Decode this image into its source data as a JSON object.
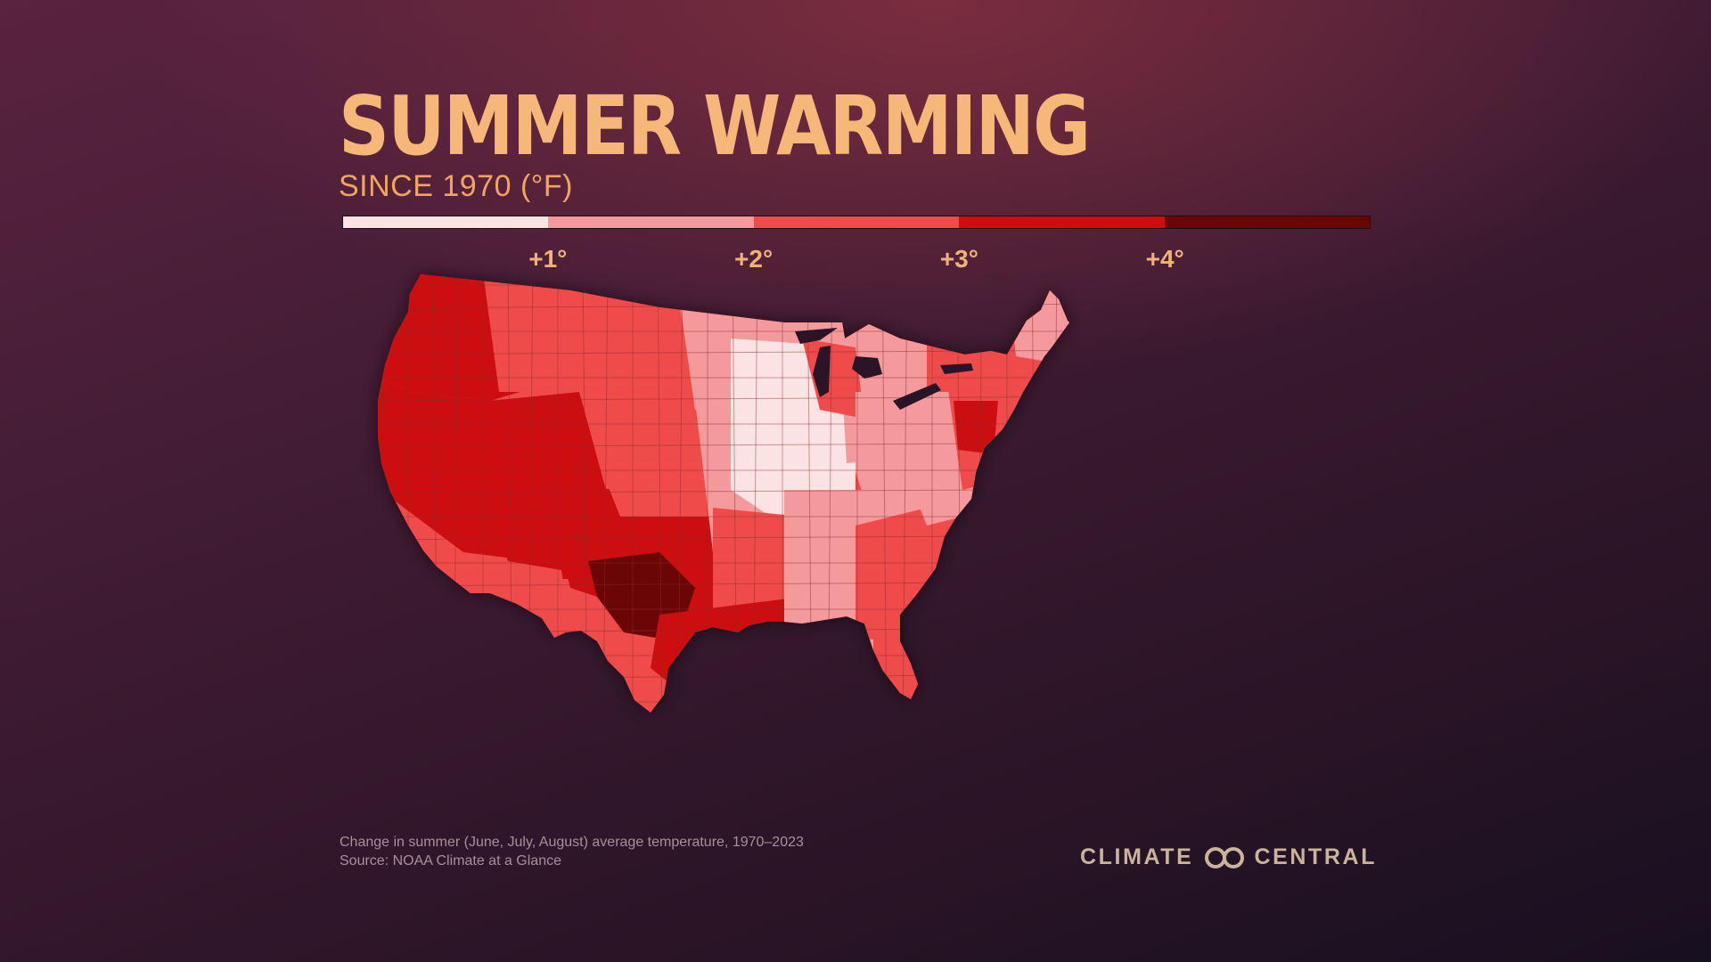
{
  "title": "SUMMER WARMING",
  "subtitle": "SINCE 1970 (°F)",
  "legend": {
    "colors": [
      "#fbe3e3",
      "#f59a9c",
      "#f04b4b",
      "#cc0e10",
      "#6b0606"
    ],
    "ticks": [
      {
        "label": "+1°",
        "value": 1
      },
      {
        "label": "+2°",
        "value": 2
      },
      {
        "label": "+3°",
        "value": 3
      },
      {
        "label": "+4°",
        "value": 4
      }
    ]
  },
  "map": {
    "regions": [
      {
        "name": "pacific-northwest",
        "color": "#cc0e10"
      },
      {
        "name": "california-great-basin",
        "color": "#cc0e10"
      },
      {
        "name": "southern-california",
        "color": "#f04b4b"
      },
      {
        "name": "desert-southwest",
        "color": "#cc0e10"
      },
      {
        "name": "arizona-south",
        "color": "#f04b4b"
      },
      {
        "name": "northern-rockies",
        "color": "#f04b4b"
      },
      {
        "name": "wyoming-colorado",
        "color": "#f04b4b"
      },
      {
        "name": "southern-rockies",
        "color": "#cc0e10"
      },
      {
        "name": "northern-plains",
        "color": "#f59a9c"
      },
      {
        "name": "high-plains",
        "color": "#f59a9c"
      },
      {
        "name": "corn-belt",
        "color": "#fbe3e3"
      },
      {
        "name": "upper-midwest",
        "color": "#f59a9c"
      },
      {
        "name": "great-lakes",
        "color": "#f04b4b"
      },
      {
        "name": "ohio-valley",
        "color": "#f59a9c"
      },
      {
        "name": "southern-plains",
        "color": "#f04b4b"
      },
      {
        "name": "west-texas",
        "color": "#6b0606"
      },
      {
        "name": "gulf-coast",
        "color": "#cc0e10"
      },
      {
        "name": "lower-mississippi",
        "color": "#f59a9c"
      },
      {
        "name": "southeast",
        "color": "#f04b4b"
      },
      {
        "name": "florida",
        "color": "#f04b4b"
      },
      {
        "name": "appalachia",
        "color": "#f59a9c"
      },
      {
        "name": "mid-atlantic",
        "color": "#f04b4b"
      },
      {
        "name": "new-jersey-delaware",
        "color": "#cc0e10"
      },
      {
        "name": "new-york-new-england",
        "color": "#f04b4b"
      },
      {
        "name": "northern-new-england",
        "color": "#f59a9c"
      }
    ]
  },
  "note": {
    "line1": "Change in summer (June, July, August) average temperature, 1970–2023",
    "line2": "Source: NOAA Climate at a Glance"
  },
  "logo": {
    "left": "CLIMATE",
    "right": "CENTRAL",
    "icon": "infinity-icon"
  }
}
